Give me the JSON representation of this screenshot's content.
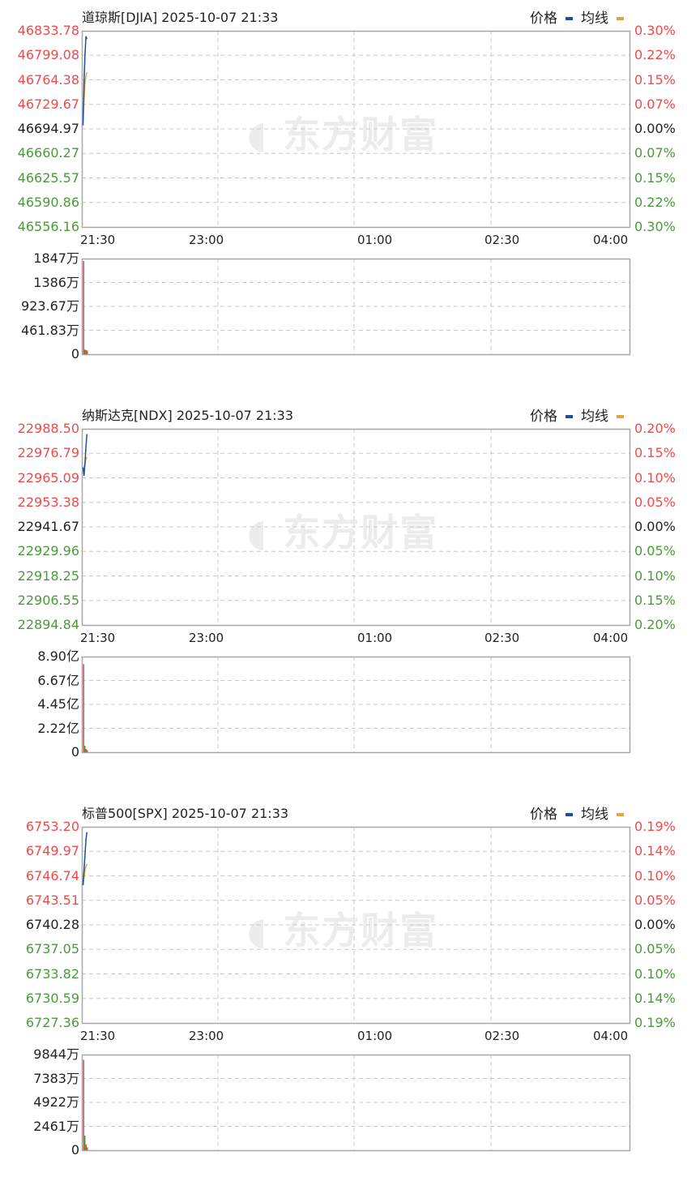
{
  "legend": {
    "price_label": "价格",
    "avg_label": "均线",
    "price_color": "#1f4e9c",
    "avg_color": "#e0a830"
  },
  "watermark": "东方财富",
  "colors": {
    "up": "#f04a4a",
    "down": "#4a9a3a",
    "flat": "#222222"
  },
  "time_axis": [
    "21:30",
    "23:00",
    "01:00",
    "02:30",
    "04:00"
  ],
  "panels": [
    {
      "title": "道琼斯[DJIA] 2025-10-07 21:33",
      "price_labels": [
        "46833.78",
        "46799.08",
        "46764.38",
        "46729.67",
        "46694.97",
        "46660.27",
        "46625.57",
        "46590.86",
        "46556.16"
      ],
      "pct_labels": [
        "0.30%",
        "0.22%",
        "0.15%",
        "0.07%",
        "0.00%",
        "0.07%",
        "0.15%",
        "0.22%",
        "0.30%"
      ],
      "volume_labels": [
        "1847万",
        "1386万",
        "923.67万",
        "461.83万",
        "0"
      ],
      "volume_max": 1847,
      "prices": [
        46700,
        46760,
        46800,
        46826,
        46822
      ],
      "avg": [
        46705,
        46735,
        46760,
        46770,
        46775
      ],
      "volumes": [
        1800,
        90,
        80,
        70
      ]
    },
    {
      "title": "纳斯达克[NDX] 2025-10-07 21:33",
      "price_labels": [
        "22988.50",
        "22976.79",
        "22965.09",
        "22953.38",
        "22941.67",
        "22929.96",
        "22918.25",
        "22906.55",
        "22894.84"
      ],
      "pct_labels": [
        "0.20%",
        "0.15%",
        "0.10%",
        "0.05%",
        "0.00%",
        "0.05%",
        "0.10%",
        "0.15%",
        "0.20%"
      ],
      "volume_labels": [
        "8.90亿",
        "6.67亿",
        "4.45亿",
        "2.22亿",
        "0"
      ],
      "volume_max": 8.9,
      "prices": [
        22970,
        22966,
        22972,
        22980,
        22986
      ],
      "avg": [
        22970,
        22970,
        22972,
        22974,
        22975
      ],
      "volumes": [
        8.2,
        0.6,
        0.3,
        0.2
      ]
    },
    {
      "title": "标普500[SPX] 2025-10-07 21:33",
      "price_labels": [
        "6753.20",
        "6749.97",
        "6746.74",
        "6743.51",
        "6740.28",
        "6737.05",
        "6733.82",
        "6730.59",
        "6727.36"
      ],
      "pct_labels": [
        "0.19%",
        "0.14%",
        "0.10%",
        "0.05%",
        "0.00%",
        "0.05%",
        "0.10%",
        "0.14%",
        "0.19%"
      ],
      "volume_labels": [
        "9844万",
        "7383万",
        "4922万",
        "2461万",
        "0"
      ],
      "volume_max": 9844,
      "prices": [
        6745.5,
        6747.5,
        6749.5,
        6751.5,
        6752.5
      ],
      "avg": [
        6745.5,
        6746.5,
        6747.5,
        6748,
        6748.3
      ],
      "volumes": [
        9300,
        1500,
        600,
        300
      ]
    }
  ]
}
